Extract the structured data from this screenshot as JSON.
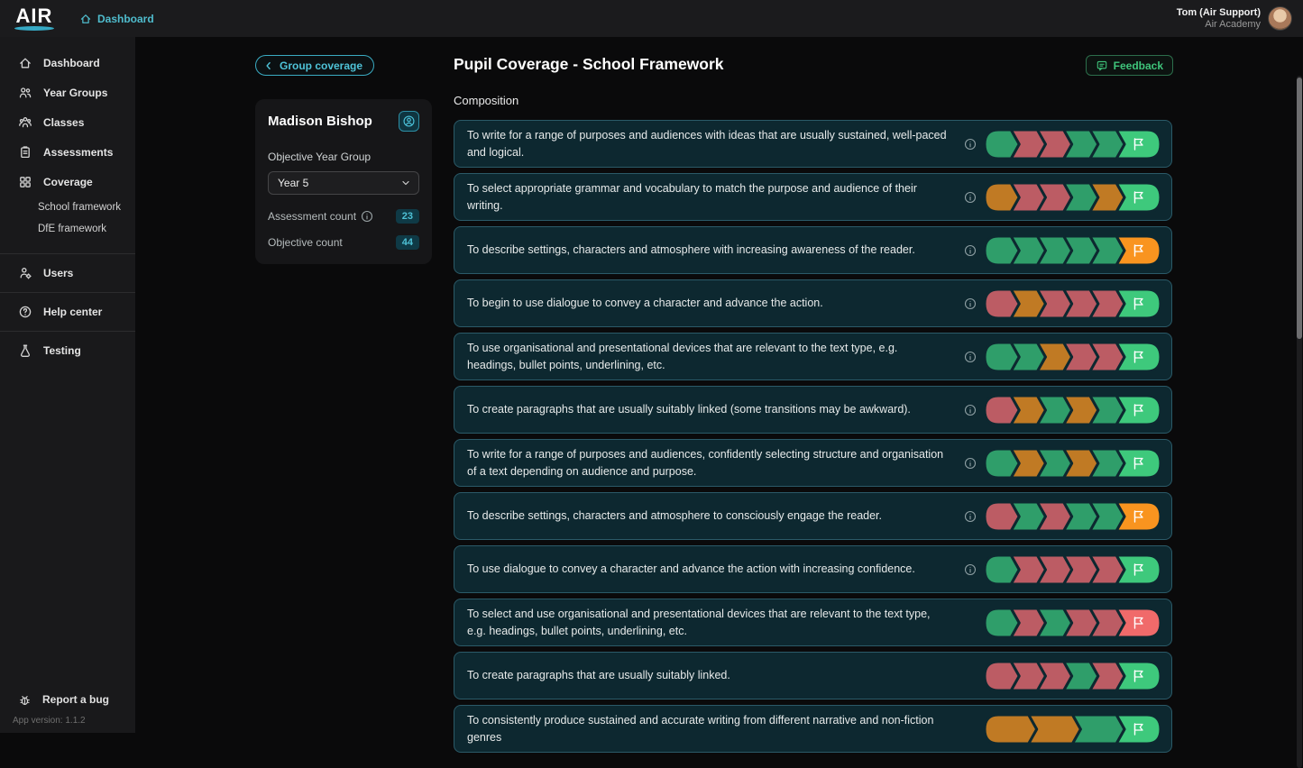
{
  "colors": {
    "accent_cyan": "#4fbccd",
    "accent_green": "#3fc57b",
    "segment_green": "#2f9e6a",
    "segment_red": "#bc5c64",
    "segment_orange": "#c07a24",
    "flag_green": "#3ec97c",
    "flag_orange": "#f9941f",
    "flag_red": "#f06a6a",
    "row_bg": "#0d2830",
    "row_border": "#2b5a68"
  },
  "topnav": {
    "logo_text": "AIR",
    "breadcrumb": "Dashboard",
    "user_name": "Tom (Air Support)",
    "user_org": "Air Academy"
  },
  "sidebar": {
    "primary": [
      {
        "label": "Dashboard",
        "icon": "home-icon"
      },
      {
        "label": "Year Groups",
        "icon": "year-groups-icon"
      },
      {
        "label": "Classes",
        "icon": "classes-icon"
      },
      {
        "label": "Assessments",
        "icon": "assessments-icon"
      },
      {
        "label": "Coverage",
        "icon": "coverage-icon",
        "children": [
          "School framework",
          "DfE framework"
        ]
      }
    ],
    "secondary": [
      {
        "label": "Users",
        "icon": "users-icon"
      },
      {
        "label": "Help center",
        "icon": "help-icon"
      },
      {
        "label": "Testing",
        "icon": "testing-icon"
      }
    ],
    "footer": {
      "report_bug": "Report a bug",
      "app_version": "App version: 1.1.2"
    }
  },
  "header": {
    "back_button": "Group coverage",
    "title": "Pupil Coverage - School Framework",
    "feedback_button": "Feedback"
  },
  "pupil_card": {
    "name": "Madison Bishop",
    "year_group_label": "Objective Year Group",
    "year_group_value": "Year 5",
    "stats": [
      {
        "label": "Assessment count",
        "info": true,
        "value": "23"
      },
      {
        "label": "Objective count",
        "info": false,
        "value": "44"
      }
    ]
  },
  "coverage": {
    "section_title": "Composition",
    "rows": [
      {
        "text": "To write for a range of purposes and audiences with ideas that are usually sustained, well-paced and logical.",
        "info": true,
        "segments": [
          "green",
          "red",
          "red",
          "green",
          "green"
        ],
        "flag": "green"
      },
      {
        "text": "To select appropriate grammar and vocabulary to match the purpose and audience of their writing.",
        "info": true,
        "segments": [
          "orange",
          "red",
          "red",
          "green",
          "orange"
        ],
        "flag": "green"
      },
      {
        "text": "To describe settings, characters and atmosphere with increasing awareness of the reader.",
        "info": true,
        "segments": [
          "green",
          "green",
          "green",
          "green",
          "green"
        ],
        "flag": "orange"
      },
      {
        "text": "To begin to use dialogue to convey a character and advance the action.",
        "info": true,
        "segments": [
          "red",
          "orange",
          "red",
          "red",
          "red"
        ],
        "flag": "green"
      },
      {
        "text": "To use organisational and presentational devices that are relevant to the text type, e.g. headings, bullet points, underlining, etc.",
        "info": true,
        "segments": [
          "green",
          "green",
          "orange",
          "red",
          "red"
        ],
        "flag": "green"
      },
      {
        "text": "To create paragraphs that are usually suitably linked (some transitions may be awkward).",
        "info": true,
        "segments": [
          "red",
          "orange",
          "green",
          "orange",
          "green"
        ],
        "flag": "green"
      },
      {
        "text": "To write for a range of purposes and audiences, confidently selecting structure and organisation of a text depending on audience and purpose.",
        "info": true,
        "segments": [
          "green",
          "orange",
          "green",
          "orange",
          "green"
        ],
        "flag": "green"
      },
      {
        "text": "To describe settings, characters and atmosphere to consciously engage the reader.",
        "info": true,
        "segments": [
          "red",
          "green",
          "red",
          "green",
          "green"
        ],
        "flag": "orange"
      },
      {
        "text": "To use dialogue to convey a character and advance the action with increasing confidence.",
        "info": true,
        "segments": [
          "green",
          "red",
          "red",
          "red",
          "red"
        ],
        "flag": "green"
      },
      {
        "text": "To select and use organisational and presentational devices that are relevant to the text type, e.g. headings, bullet points, underlining, etc.",
        "info": false,
        "segments": [
          "green",
          "red",
          "green",
          "red",
          "red"
        ],
        "flag": "red"
      },
      {
        "text": "To create paragraphs that are usually suitably linked.",
        "info": false,
        "segments": [
          "red",
          "red",
          "red",
          "green",
          "red"
        ],
        "flag": "green"
      },
      {
        "text": "To consistently produce sustained and accurate writing from different narrative and non-fiction genres",
        "info": false,
        "segments": [
          "orange",
          "orange",
          "green"
        ],
        "flag": "green"
      }
    ]
  }
}
